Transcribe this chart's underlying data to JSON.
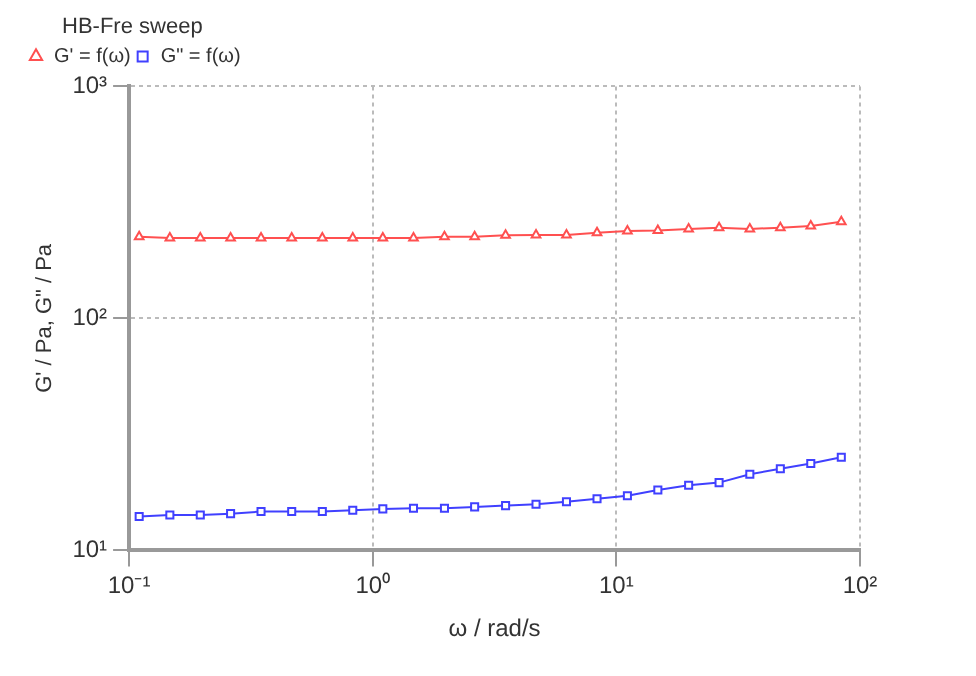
{
  "chart_data": {
    "type": "line",
    "xlabel": "ω / rad/s",
    "ylabel": "G' / Pa, G\" / Pa",
    "legend_title": "HB-Fre sweep",
    "log": "xy",
    "grid": true,
    "legend": "top left",
    "line_style": "solid",
    "x": [
      0.11,
      0.147,
      0.196,
      0.261,
      0.348,
      0.465,
      0.621,
      0.828,
      1.1,
      1.47,
      1.97,
      2.62,
      3.51,
      4.68,
      6.24,
      8.33,
      11.1,
      14.8,
      19.8,
      26.4,
      35.3,
      47.1,
      62.8,
      83.8
    ],
    "xlim": [
      0.1,
      100
    ],
    "xticks": [
      {
        "value": 0.1,
        "label": "10⁻¹"
      },
      {
        "value": 1,
        "label": "10⁰"
      },
      {
        "value": 10,
        "label": "10¹"
      },
      {
        "value": 100,
        "label": "10²"
      }
    ],
    "ylim": [
      10,
      1000
    ],
    "yticks": [
      {
        "value": 10,
        "label": "10¹"
      },
      {
        "value": 100,
        "label": "10²"
      },
      {
        "value": 1000,
        "label": "10³"
      }
    ],
    "series": [
      {
        "name": "G' = f(ω)",
        "color": "#ff5050",
        "marker": "triangle",
        "values": [
          225,
          222,
          222,
          222,
          222,
          222,
          222,
          222,
          222,
          222,
          225,
          225,
          228,
          229,
          229,
          234,
          238,
          239,
          243,
          246,
          243,
          246,
          250,
          261
        ]
      },
      {
        "name": "G\" = f(ω)",
        "color": "#4040ff",
        "marker": "square",
        "values": [
          14.0,
          14.2,
          14.2,
          14.4,
          14.7,
          14.7,
          14.7,
          14.9,
          15.1,
          15.2,
          15.2,
          15.4,
          15.6,
          15.8,
          16.2,
          16.7,
          17.2,
          18.2,
          19.1,
          19.6,
          21.3,
          22.5,
          23.7,
          25.2
        ]
      }
    ]
  }
}
